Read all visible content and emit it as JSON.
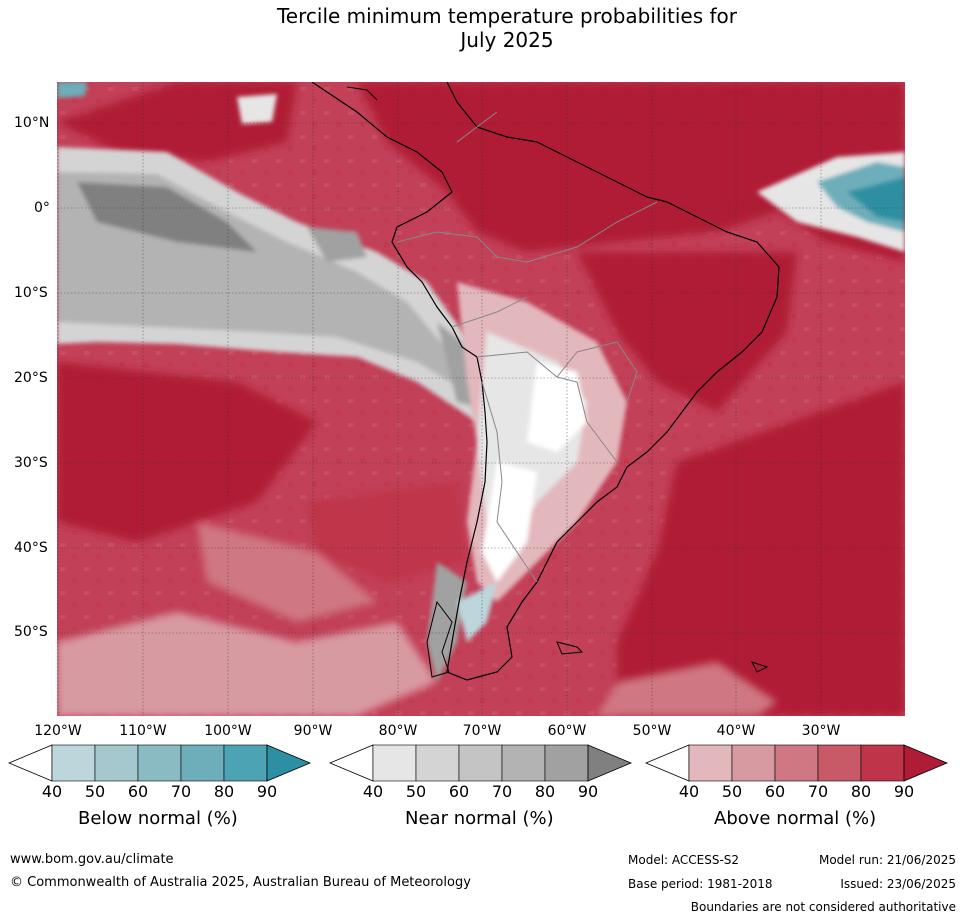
{
  "title_line1": "Tercile minimum temperature probabilities for",
  "title_line2": "July 2025",
  "lat_labels": [
    "10°N",
    "0°",
    "10°S",
    "20°S",
    "30°S",
    "40°S",
    "50°S"
  ],
  "lon_labels": [
    "120°W",
    "110°W",
    "100°W",
    "90°W",
    "80°W",
    "70°W",
    "60°W",
    "50°W",
    "40°W",
    "30°W"
  ],
  "colorbars": [
    {
      "name": "Below normal (%)",
      "ticks": [
        "40",
        "50",
        "60",
        "70",
        "80",
        "90"
      ],
      "colors": [
        "#bdd6dc",
        "#a4c8ce",
        "#8abbc3",
        "#6daeba",
        "#4ba3b3",
        "#2d8fa3"
      ]
    },
    {
      "name": "Near normal (%)",
      "ticks": [
        "40",
        "50",
        "60",
        "70",
        "80",
        "90"
      ],
      "colors": [
        "#e6e6e6",
        "#d4d4d4",
        "#c4c4c4",
        "#b3b3b3",
        "#a1a1a1",
        "#808080"
      ]
    },
    {
      "name": "Above normal (%)",
      "ticks": [
        "40",
        "50",
        "60",
        "70",
        "80",
        "90"
      ],
      "colors": [
        "#e3b8bd",
        "#d89aa1",
        "#cf7782",
        "#c85a67",
        "#bf3448",
        "#b01c36"
      ]
    }
  ],
  "footer": {
    "website": "www.bom.gov.au/climate",
    "copyright": "© Commonwealth of Australia 2025, Australian Bureau of Meteorology",
    "model": "Model: ACCESS-S2",
    "model_run": "Model run: 21/06/2025",
    "base_period": "Base period: 1981-2018",
    "issued": "Issued: 23/06/2025",
    "disclaimer": "Boundaries are not considered authoritative"
  }
}
